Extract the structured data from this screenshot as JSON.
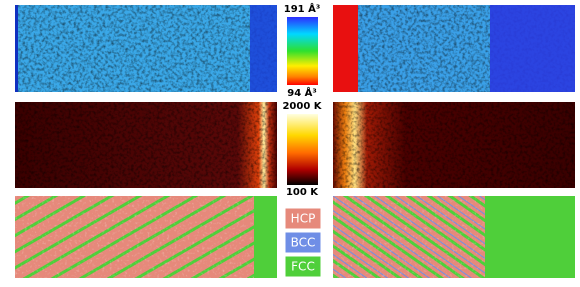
{
  "colorbars": [
    {
      "top": "191 Å³",
      "bottom": "94 Å³"
    },
    {
      "top": "2000 K",
      "bottom": "100 K"
    }
  ],
  "legend": [
    {
      "label": "HCP",
      "color": "#e6897b"
    },
    {
      "label": "BCC",
      "color": "#6f8ee6"
    },
    {
      "label": "FCC",
      "color": "#4fcf3a"
    }
  ]
}
